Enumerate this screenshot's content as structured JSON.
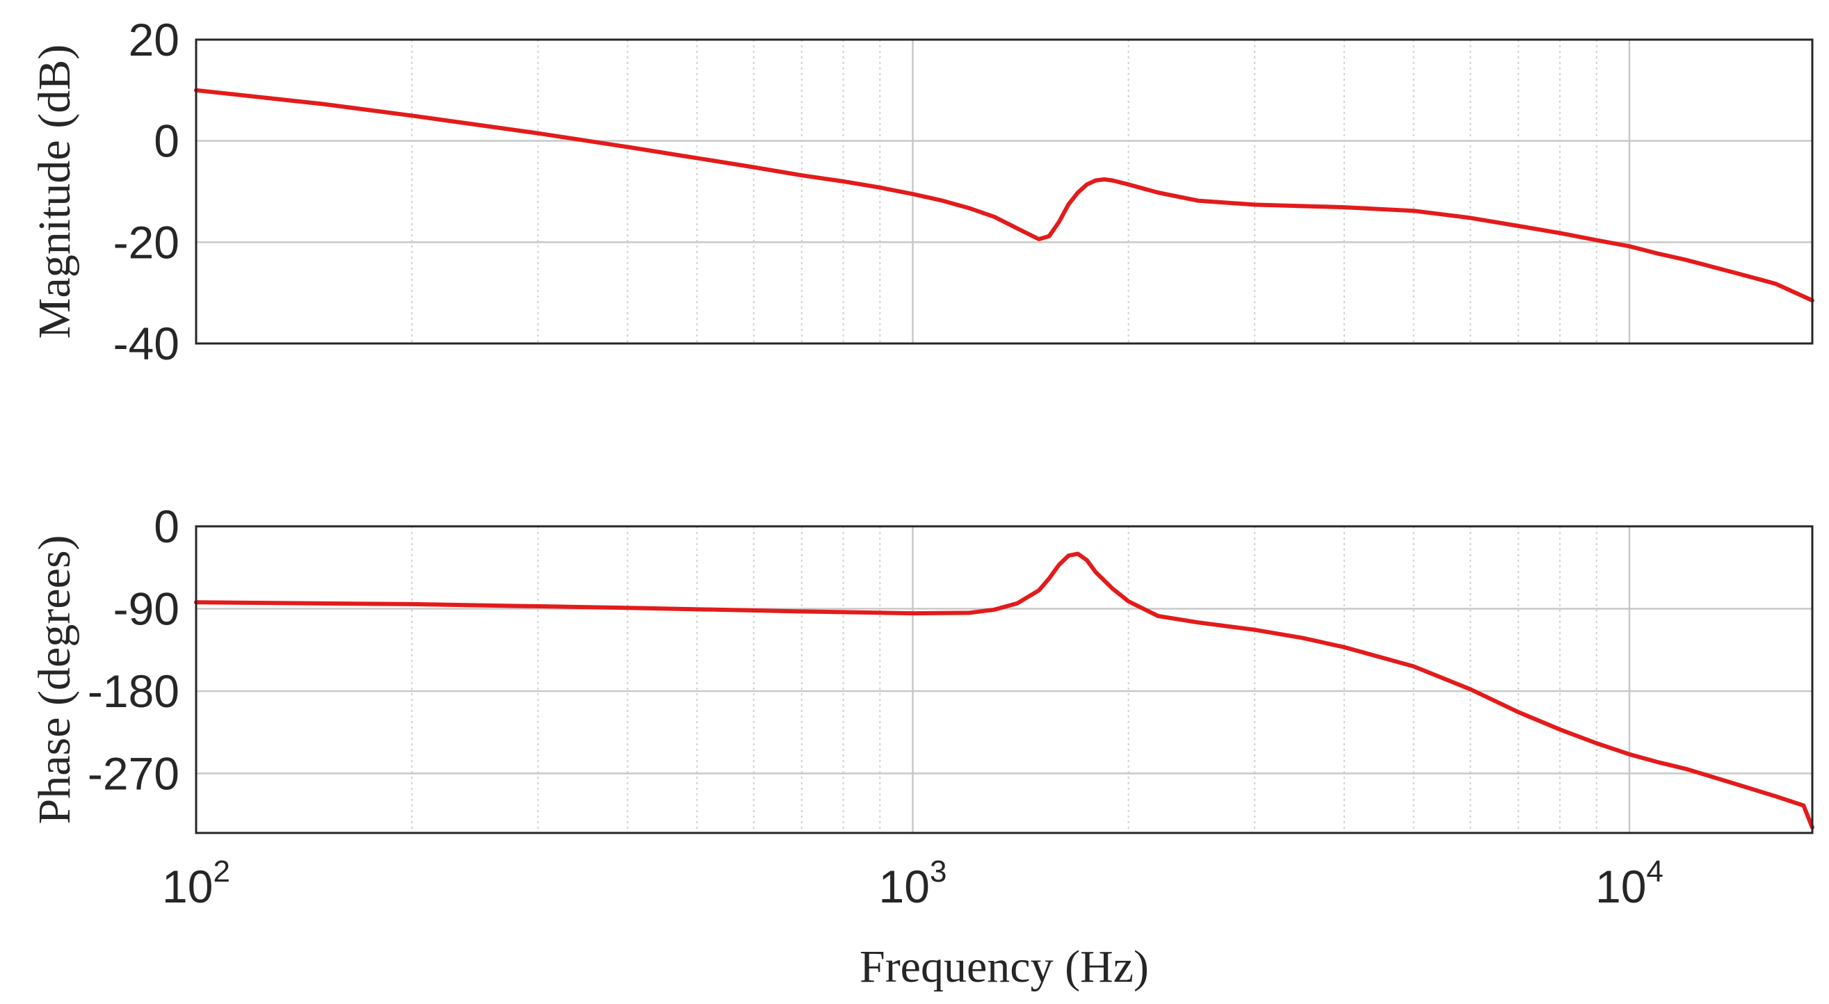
{
  "colors": {
    "curve": "#e31b1b",
    "axis": "#262626",
    "grid": "#c8c8c8"
  },
  "chart_data": [
    {
      "type": "line",
      "panel": "magnitude",
      "title": "",
      "xlabel": "",
      "ylabel": "Magnitude (dB)",
      "xscale": "log",
      "xlim": [
        100,
        18000
      ],
      "ylim": [
        -40,
        20
      ],
      "yticks": [
        20,
        0,
        -20,
        -40
      ],
      "ytick_labels": [
        "20",
        "0",
        "-20",
        "-40"
      ],
      "grid": true,
      "series": [
        {
          "x": [
            100,
            150,
            200,
            300,
            400,
            500,
            600,
            700,
            800,
            900,
            1000,
            1100,
            1200,
            1300,
            1400,
            1500,
            1550,
            1600,
            1650,
            1700,
            1750,
            1800,
            1850,
            1900,
            2000,
            2200,
            2500,
            3000,
            4000,
            5000,
            6000,
            7000,
            8000,
            9000,
            10000,
            11000,
            12000,
            14000,
            16000,
            18000
          ],
          "y": [
            10,
            7.3,
            5,
            1.5,
            -1.2,
            -3.4,
            -5.2,
            -6.8,
            -8.0,
            -9.2,
            -10.5,
            -11.8,
            -13.3,
            -15.0,
            -17.3,
            -19.4,
            -18.8,
            -16,
            -12.5,
            -10.2,
            -8.6,
            -7.8,
            -7.6,
            -7.8,
            -8.6,
            -10.2,
            -11.8,
            -12.6,
            -13.1,
            -13.8,
            -15.2,
            -16.8,
            -18.2,
            -19.6,
            -20.8,
            -22.3,
            -23.5,
            -26,
            -28.2,
            -31.5
          ]
        }
      ]
    },
    {
      "type": "line",
      "panel": "phase",
      "title": "",
      "xlabel": "Frequency (Hz)",
      "ylabel": "Phase (degrees)",
      "xscale": "log",
      "xlim": [
        100,
        18000
      ],
      "ylim": [
        -335,
        0
      ],
      "yticks": [
        0,
        -90,
        -180,
        -270
      ],
      "ytick_labels": [
        "0",
        "-90",
        "-180",
        "-270"
      ],
      "xticks": [
        100,
        1000,
        10000
      ],
      "xtick_labels": [
        {
          "base": "10",
          "exp": "2"
        },
        {
          "base": "10",
          "exp": "3"
        },
        {
          "base": "10",
          "exp": "4"
        }
      ],
      "grid": true,
      "series": [
        {
          "x": [
            100,
            200,
            400,
            700,
            1000,
            1200,
            1300,
            1400,
            1500,
            1550,
            1600,
            1650,
            1700,
            1750,
            1800,
            1900,
            2000,
            2200,
            2500,
            3000,
            3500,
            4000,
            5000,
            6000,
            7000,
            8000,
            9000,
            10000,
            11000,
            12000,
            14000,
            16000,
            17500,
            18000
          ],
          "y": [
            -83,
            -85,
            -89,
            -93,
            -95,
            -94.5,
            -91,
            -84,
            -70,
            -57,
            -42,
            -32,
            -30,
            -37,
            -50,
            -68,
            -82,
            -98,
            -105,
            -113,
            -122,
            -132,
            -153,
            -178,
            -203,
            -222,
            -237,
            -249,
            -258,
            -265,
            -281,
            -295,
            -305,
            -329
          ]
        }
      ]
    }
  ]
}
